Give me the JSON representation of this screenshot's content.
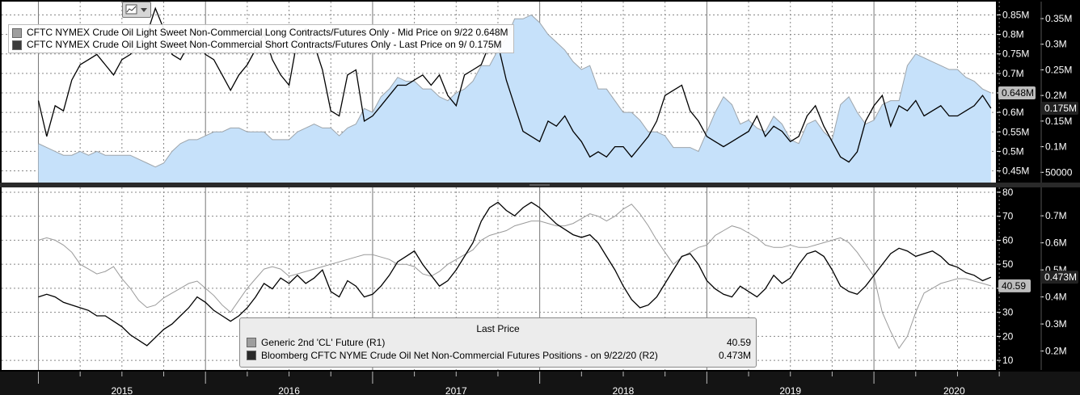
{
  "colors": {
    "background": "#000000",
    "grid": "#ffffff",
    "panel_bg": "#ffffff",
    "area_fill": "#c6e1fa",
    "long_line": "#9ea5ab",
    "short_line": "#000000",
    "cl_line": "#9a9a9a",
    "net_line": "#000000",
    "axis_bar": "#141414",
    "separator": "#2a2a2a"
  },
  "icons": {
    "chart_toggle": "line-chart-icon"
  },
  "legend_top": [
    {
      "swatch": "#9e9e9e",
      "label": "CFTC NYMEX Crude Oil Light Sweet Non-Commercial Long Contracts/Futures Only - Mid Price on 9/22 0.648M"
    },
    {
      "swatch": "#3a3a3a",
      "label": "CFTC NYMEX Crude Oil Light Sweet Non-Commercial Short Contracts/Futures Only - Last Price on 9/  0.175M"
    }
  ],
  "legend_bottom": {
    "header": "Last Price",
    "rows": [
      {
        "swatch": "#9e9e9e",
        "label": "Generic 2nd 'CL' Future  (R1)",
        "value": "40.59"
      },
      {
        "swatch": "#2a2a2a",
        "label": "Bloomberg CFTC NYME Crude Oil Net Non-Commercial Futures Positions -  on 9/22/20  (R2)",
        "value": "0.473M"
      }
    ]
  },
  "chart_data": [
    {
      "type": "area",
      "title": "",
      "x": [
        2015.0,
        2015.05,
        2015.1,
        2015.15,
        2015.2,
        2015.25,
        2015.3,
        2015.35,
        2015.4,
        2015.45,
        2015.5,
        2015.55,
        2015.6,
        2015.65,
        2015.7,
        2015.75,
        2015.8,
        2015.85,
        2015.9,
        2015.95,
        2016.0,
        2016.05,
        2016.1,
        2016.15,
        2016.2,
        2016.25,
        2016.3,
        2016.35,
        2016.4,
        2016.45,
        2016.5,
        2016.55,
        2016.6,
        2016.65,
        2016.7,
        2016.75,
        2016.8,
        2016.85,
        2016.9,
        2016.95,
        2017.0,
        2017.05,
        2017.1,
        2017.15,
        2017.2,
        2017.25,
        2017.3,
        2017.35,
        2017.4,
        2017.45,
        2017.5,
        2017.55,
        2017.6,
        2017.65,
        2017.7,
        2017.75,
        2017.8,
        2017.85,
        2017.9,
        2017.95,
        2018.0,
        2018.05,
        2018.1,
        2018.15,
        2018.2,
        2018.25,
        2018.3,
        2018.35,
        2018.4,
        2018.45,
        2018.5,
        2018.55,
        2018.6,
        2018.65,
        2018.7,
        2018.75,
        2018.8,
        2018.85,
        2018.9,
        2018.95,
        2019.0,
        2019.05,
        2019.1,
        2019.15,
        2019.2,
        2019.25,
        2019.3,
        2019.35,
        2019.4,
        2019.45,
        2019.5,
        2019.55,
        2019.6,
        2019.65,
        2019.7,
        2019.75,
        2019.8,
        2019.85,
        2019.9,
        2019.95,
        2020.0,
        2020.05,
        2020.1,
        2020.15,
        2020.2,
        2020.25,
        2020.3,
        2020.35,
        2020.4,
        2020.45,
        2020.5,
        2020.55,
        2020.6,
        2020.65,
        2020.7
      ],
      "series": [
        {
          "name": "CFTC NYMEX Crude Oil Light Sweet Non-Commercial Long Contracts/Futures Only",
          "axis": "left",
          "values": [
            0.52,
            0.51,
            0.5,
            0.49,
            0.49,
            0.5,
            0.49,
            0.5,
            0.49,
            0.49,
            0.49,
            0.49,
            0.48,
            0.47,
            0.46,
            0.47,
            0.5,
            0.52,
            0.53,
            0.53,
            0.54,
            0.55,
            0.55,
            0.56,
            0.56,
            0.55,
            0.55,
            0.55,
            0.53,
            0.53,
            0.53,
            0.55,
            0.56,
            0.57,
            0.56,
            0.56,
            0.54,
            0.56,
            0.57,
            0.61,
            0.6,
            0.64,
            0.66,
            0.69,
            0.68,
            0.68,
            0.66,
            0.66,
            0.64,
            0.63,
            0.65,
            0.66,
            0.68,
            0.72,
            0.72,
            0.76,
            0.79,
            0.84,
            0.84,
            0.85,
            0.83,
            0.8,
            0.78,
            0.76,
            0.73,
            0.71,
            0.72,
            0.66,
            0.66,
            0.63,
            0.6,
            0.6,
            0.58,
            0.55,
            0.55,
            0.54,
            0.51,
            0.51,
            0.51,
            0.5,
            0.55,
            0.6,
            0.64,
            0.62,
            0.57,
            0.58,
            0.56,
            0.55,
            0.59,
            0.57,
            0.53,
            0.52,
            0.57,
            0.58,
            0.55,
            0.53,
            0.62,
            0.64,
            0.6,
            0.57,
            0.58,
            0.62,
            0.63,
            0.63,
            0.72,
            0.75,
            0.74,
            0.73,
            0.72,
            0.71,
            0.71,
            0.69,
            0.68,
            0.66,
            0.65
          ]
        },
        {
          "name": "CFTC NYMEX Crude Oil Light Sweet Non-Commercial Short Contracts/Futures Only",
          "axis": "right",
          "values": [
            0.19,
            0.12,
            0.18,
            0.17,
            0.23,
            0.26,
            0.27,
            0.28,
            0.26,
            0.24,
            0.27,
            0.28,
            0.3,
            0.32,
            0.37,
            0.33,
            0.28,
            0.27,
            0.3,
            0.33,
            0.28,
            0.27,
            0.24,
            0.21,
            0.24,
            0.26,
            0.29,
            0.32,
            0.27,
            0.24,
            0.22,
            0.31,
            0.33,
            0.3,
            0.25,
            0.17,
            0.16,
            0.24,
            0.25,
            0.15,
            0.16,
            0.18,
            0.2,
            0.22,
            0.22,
            0.23,
            0.24,
            0.22,
            0.24,
            0.2,
            0.18,
            0.24,
            0.25,
            0.26,
            0.3,
            0.3,
            0.23,
            0.18,
            0.13,
            0.12,
            0.11,
            0.15,
            0.14,
            0.16,
            0.13,
            0.11,
            0.08,
            0.09,
            0.08,
            0.1,
            0.1,
            0.08,
            0.1,
            0.12,
            0.15,
            0.2,
            0.21,
            0.22,
            0.17,
            0.15,
            0.12,
            0.11,
            0.1,
            0.11,
            0.12,
            0.13,
            0.16,
            0.12,
            0.14,
            0.13,
            0.11,
            0.12,
            0.16,
            0.18,
            0.14,
            0.11,
            0.08,
            0.07,
            0.09,
            0.15,
            0.18,
            0.2,
            0.14,
            0.18,
            0.17,
            0.19,
            0.16,
            0.17,
            0.18,
            0.16,
            0.16,
            0.17,
            0.18,
            0.2,
            0.175
          ]
        }
      ],
      "left_axis": {
        "ticks": [
          "0.45M",
          "0.5M",
          "0.55M",
          "0.6M",
          "0.65M",
          "0.7M",
          "0.75M",
          "0.8M",
          "0.85M"
        ],
        "ylim": [
          0.42,
          0.88
        ]
      },
      "right_axis": {
        "ticks": [
          "50000",
          "0.1M",
          "0.15M",
          "0.2M",
          "0.25M",
          "0.3M",
          "0.35M"
        ],
        "ylim": [
          0.03,
          0.38
        ]
      },
      "last_value_labels": {
        "long": "0.648M",
        "short": "0.175M"
      }
    },
    {
      "type": "line",
      "title": "",
      "x": [
        2015.0,
        2015.05,
        2015.1,
        2015.15,
        2015.2,
        2015.25,
        2015.3,
        2015.35,
        2015.4,
        2015.45,
        2015.5,
        2015.55,
        2015.6,
        2015.65,
        2015.7,
        2015.75,
        2015.8,
        2015.85,
        2015.9,
        2015.95,
        2016.0,
        2016.05,
        2016.1,
        2016.15,
        2016.2,
        2016.25,
        2016.3,
        2016.35,
        2016.4,
        2016.45,
        2016.5,
        2016.55,
        2016.6,
        2016.65,
        2016.7,
        2016.75,
        2016.8,
        2016.85,
        2016.9,
        2016.95,
        2017.0,
        2017.05,
        2017.1,
        2017.15,
        2017.2,
        2017.25,
        2017.3,
        2017.35,
        2017.4,
        2017.45,
        2017.5,
        2017.55,
        2017.6,
        2017.65,
        2017.7,
        2017.75,
        2017.8,
        2017.85,
        2017.9,
        2017.95,
        2018.0,
        2018.05,
        2018.1,
        2018.15,
        2018.2,
        2018.25,
        2018.3,
        2018.35,
        2018.4,
        2018.45,
        2018.5,
        2018.55,
        2018.6,
        2018.65,
        2018.7,
        2018.75,
        2018.8,
        2018.85,
        2018.9,
        2018.95,
        2019.0,
        2019.05,
        2019.1,
        2019.15,
        2019.2,
        2019.25,
        2019.3,
        2019.35,
        2019.4,
        2019.45,
        2019.5,
        2019.55,
        2019.6,
        2019.65,
        2019.7,
        2019.75,
        2019.8,
        2019.85,
        2019.9,
        2019.95,
        2020.0,
        2020.05,
        2020.1,
        2020.15,
        2020.2,
        2020.25,
        2020.3,
        2020.35,
        2020.4,
        2020.45,
        2020.5,
        2020.55,
        2020.6,
        2020.65,
        2020.7
      ],
      "series": [
        {
          "name": "Generic 2nd 'CL' Future",
          "axis": "right1",
          "values": [
            60,
            61,
            60,
            58,
            55,
            50,
            48,
            46,
            47,
            49,
            44,
            40,
            35,
            32,
            33,
            36,
            38,
            40,
            42,
            43,
            40,
            37,
            33,
            30,
            35,
            40,
            44,
            48,
            49,
            48,
            45,
            46,
            47,
            48,
            49,
            50,
            51,
            52,
            53,
            54,
            54,
            53,
            52,
            50,
            50,
            49,
            46,
            45,
            47,
            50,
            52,
            54,
            56,
            60,
            62,
            63,
            64,
            66,
            67,
            68,
            68,
            67,
            66,
            66,
            67,
            69,
            71,
            70,
            68,
            70,
            73,
            75,
            71,
            66,
            60,
            55,
            50,
            53,
            55,
            57,
            58,
            62,
            64,
            66,
            65,
            63,
            61,
            58,
            57,
            57,
            58,
            57,
            57,
            58,
            59,
            60,
            61,
            59,
            55,
            50,
            45,
            30,
            22,
            15,
            20,
            30,
            38,
            40,
            42,
            43,
            44,
            44,
            43,
            42,
            41
          ]
        },
        {
          "name": "Bloomberg CFTC NYME Crude Oil Net Non-Commercial Futures Positions",
          "axis": "right2",
          "values": [
            0.4,
            0.41,
            0.4,
            0.38,
            0.37,
            0.36,
            0.35,
            0.33,
            0.33,
            0.31,
            0.29,
            0.26,
            0.24,
            0.22,
            0.25,
            0.28,
            0.3,
            0.33,
            0.36,
            0.4,
            0.38,
            0.35,
            0.33,
            0.31,
            0.33,
            0.36,
            0.4,
            0.45,
            0.43,
            0.47,
            0.45,
            0.48,
            0.45,
            0.47,
            0.5,
            0.42,
            0.4,
            0.46,
            0.44,
            0.4,
            0.41,
            0.44,
            0.48,
            0.53,
            0.55,
            0.57,
            0.52,
            0.48,
            0.44,
            0.46,
            0.5,
            0.55,
            0.6,
            0.68,
            0.73,
            0.75,
            0.72,
            0.7,
            0.73,
            0.75,
            0.73,
            0.7,
            0.67,
            0.65,
            0.63,
            0.62,
            0.63,
            0.6,
            0.55,
            0.5,
            0.44,
            0.39,
            0.36,
            0.37,
            0.4,
            0.45,
            0.5,
            0.55,
            0.56,
            0.52,
            0.46,
            0.43,
            0.41,
            0.4,
            0.44,
            0.42,
            0.4,
            0.43,
            0.48,
            0.45,
            0.47,
            0.52,
            0.56,
            0.57,
            0.55,
            0.5,
            0.44,
            0.42,
            0.41,
            0.44,
            0.48,
            0.52,
            0.56,
            0.58,
            0.57,
            0.55,
            0.56,
            0.57,
            0.55,
            0.52,
            0.51,
            0.49,
            0.48,
            0.46,
            0.473
          ]
        }
      ],
      "right_axis_1": {
        "ticks": [
          "10",
          "20",
          "30",
          "40",
          "50",
          "60",
          "70",
          "80"
        ],
        "ylim": [
          6,
          82
        ]
      },
      "right_axis_2": {
        "ticks": [
          "0.2M",
          "0.3M",
          "0.4M",
          "0.5M",
          "0.6M",
          "0.7M"
        ],
        "ylim": [
          0.13,
          0.805
        ]
      },
      "last_value_labels": {
        "cl": "40.59",
        "net": "0.473M"
      }
    }
  ],
  "x_axis": {
    "labels": [
      "2015",
      "2016",
      "2017",
      "2018",
      "2019",
      "2020"
    ],
    "xlim": [
      2014.78,
      2020.73
    ]
  }
}
